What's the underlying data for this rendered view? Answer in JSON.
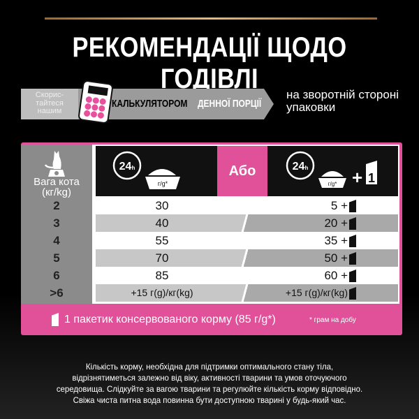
{
  "title": "РЕКОМЕНДАЦІЇ ЩОДО ГОДІВЛІ",
  "banner": {
    "try": "Скорис-тайтеся нашим",
    "calculator": "КАЛЬКУЛЯТОРОМ",
    "portion": "ДЕННОЇ ПОРЦІЇ",
    "back": "на зворотній стороні упаковки"
  },
  "colors": {
    "pink": "#e0519a",
    "gray": "#8b8b8c",
    "gold": "#d4a060"
  },
  "table": {
    "weight_label": "Вага кота (кг/kg)",
    "or_label": "Або",
    "clock_label": "24h",
    "bowl_label": "г/g*",
    "plus_one": "+1",
    "rows": [
      {
        "weight": "2",
        "dry": "30",
        "mixed": "5 +"
      },
      {
        "weight": "3",
        "dry": "40",
        "mixed": "20 +"
      },
      {
        "weight": "4",
        "dry": "55",
        "mixed": "35 +"
      },
      {
        "weight": "5",
        "dry": "70",
        "mixed": "50 +"
      },
      {
        "weight": "6",
        "dry": "85",
        "mixed": "60 +"
      },
      {
        "weight": ">6",
        "dry": "+15 г(g)/кг(kg)",
        "mixed": "+15 г(g)/кг(kg)"
      }
    ]
  },
  "footer": {
    "pouch": "1 пакетик консервованого корму (85 г/g*)",
    "note": "* грам на добу"
  },
  "paragraph": "Кількість корму, необхідна для підтримки оптимального стану тіла, відрізнятиметься залежно від віку, активності тварини та умов оточуючого середовища. Слідкуйте за вагою тварини та регулюйте кількість корму відповідно. Свіжа чиста питна вода повинна бути доступною тварині у будь-який час."
}
